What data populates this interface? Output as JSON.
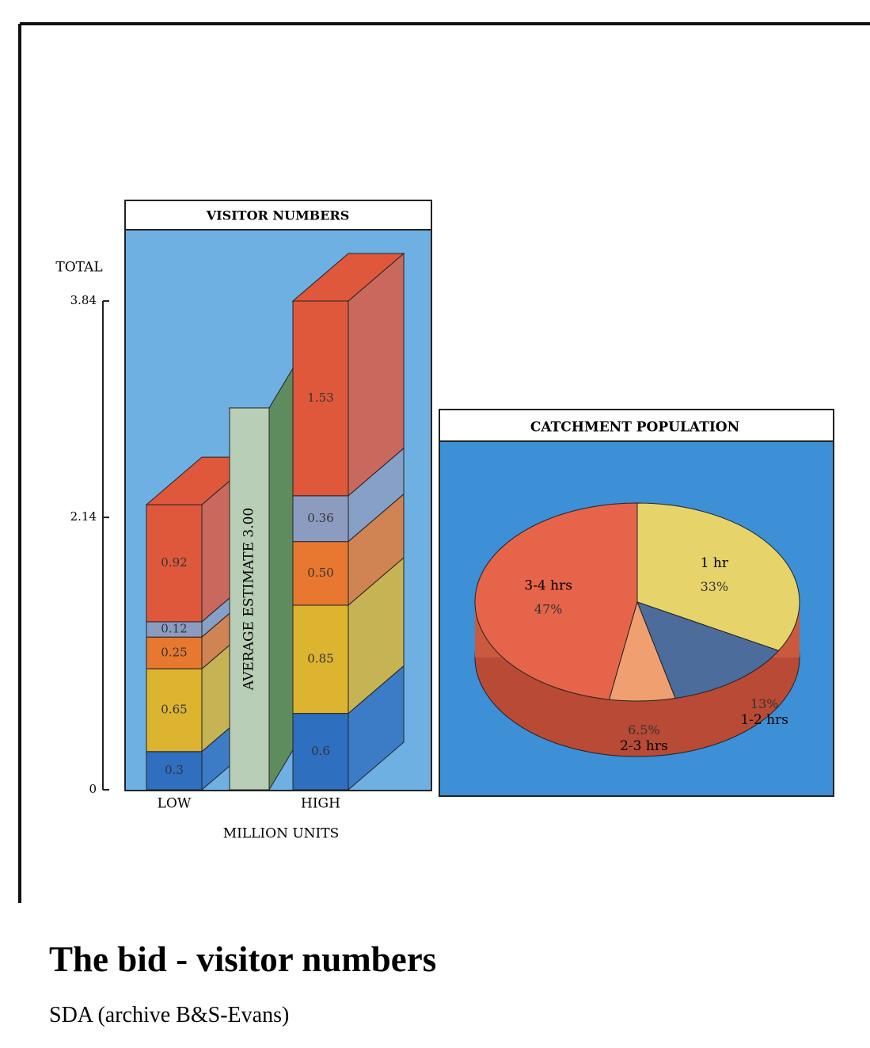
{
  "chart_data": [
    {
      "type": "bar",
      "stacked": true,
      "title": "VISITOR NUMBERS",
      "ylabel": "TOTAL",
      "xlabel": "MILLION UNITS",
      "categories": [
        "LOW",
        "HIGH"
      ],
      "series": [
        {
          "color": "#2f6fc0",
          "values": [
            0.3,
            0.6
          ]
        },
        {
          "color": "#dcb430",
          "values": [
            0.65,
            0.85
          ]
        },
        {
          "color": "#e8782f",
          "values": [
            0.25,
            0.5
          ],
          "value_labels": [
            "0.25",
            "0.50"
          ]
        },
        {
          "color": "#8c9cc0",
          "values": [
            0.12,
            0.36
          ]
        },
        {
          "color": "#e0583c",
          "values": [
            0.92,
            1.53
          ]
        }
      ],
      "average": {
        "label": "AVERAGE ESTIMATE 3.00",
        "value": 3,
        "color": "#b9ceb6"
      },
      "ylim": [
        0,
        3.84
      ],
      "yticks": [
        0,
        2.14,
        3.84
      ]
    },
    {
      "type": "pie",
      "title": "CATCHMENT POPULATION",
      "categories": [
        "3-4 hrs",
        "1 hr",
        "1-2 hrs",
        "2-3 hrs"
      ],
      "values": [
        47,
        33,
        13,
        6.5
      ],
      "value_labels": [
        "47%",
        "33%",
        "13%",
        "6.5%"
      ],
      "colors": [
        "#e6654a",
        "#e6d36a",
        "#4c6c9c",
        "#f0a070"
      ]
    }
  ],
  "caption": {
    "title": "The bid - visitor numbers",
    "credit": "SDA (archive B&S-Evans)"
  }
}
